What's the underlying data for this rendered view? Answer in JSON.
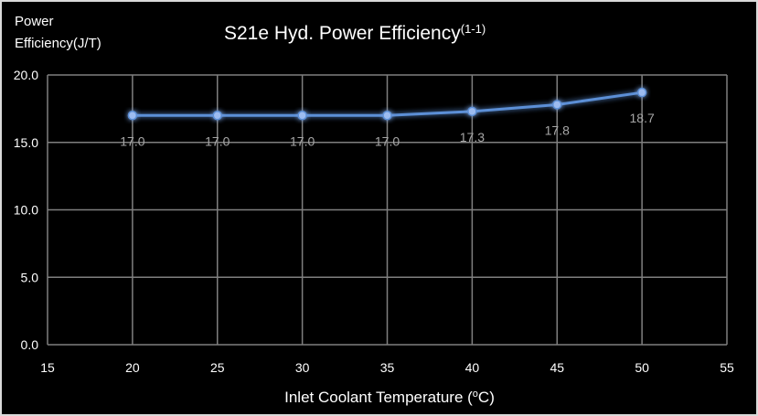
{
  "chart_data": {
    "type": "line",
    "title": "S21e Hyd. Power Efficiency",
    "title_superscript": "(1-1)",
    "ylabel_line1": "Power",
    "ylabel_line2": "Efficiency(J/T)",
    "xlabel": "Inlet Coolant Temperature (",
    "xlabel_sup": "o",
    "xlabel_end": "C)",
    "x": [
      20,
      25,
      30,
      35,
      40,
      45,
      50
    ],
    "values": [
      17.0,
      17.0,
      17.0,
      17.0,
      17.3,
      17.8,
      18.7
    ],
    "data_labels": [
      "17.0",
      "17.0",
      "17.0",
      "17.0",
      "17.3",
      "17.8",
      "18.7"
    ],
    "xlim": [
      15,
      55
    ],
    "ylim": [
      0,
      20
    ],
    "xticks": [
      "15",
      "20",
      "25",
      "30",
      "35",
      "40",
      "45",
      "50",
      "55"
    ],
    "yticks": [
      "0.0",
      "5.0",
      "10.0",
      "15.0",
      "20.0"
    ],
    "grid": true,
    "colors": {
      "background": "#000000",
      "line": "#5b8fd6",
      "marker": "#9dbcf0",
      "grid": "#7f7f7f",
      "data_label": "#a6a6a6"
    }
  }
}
